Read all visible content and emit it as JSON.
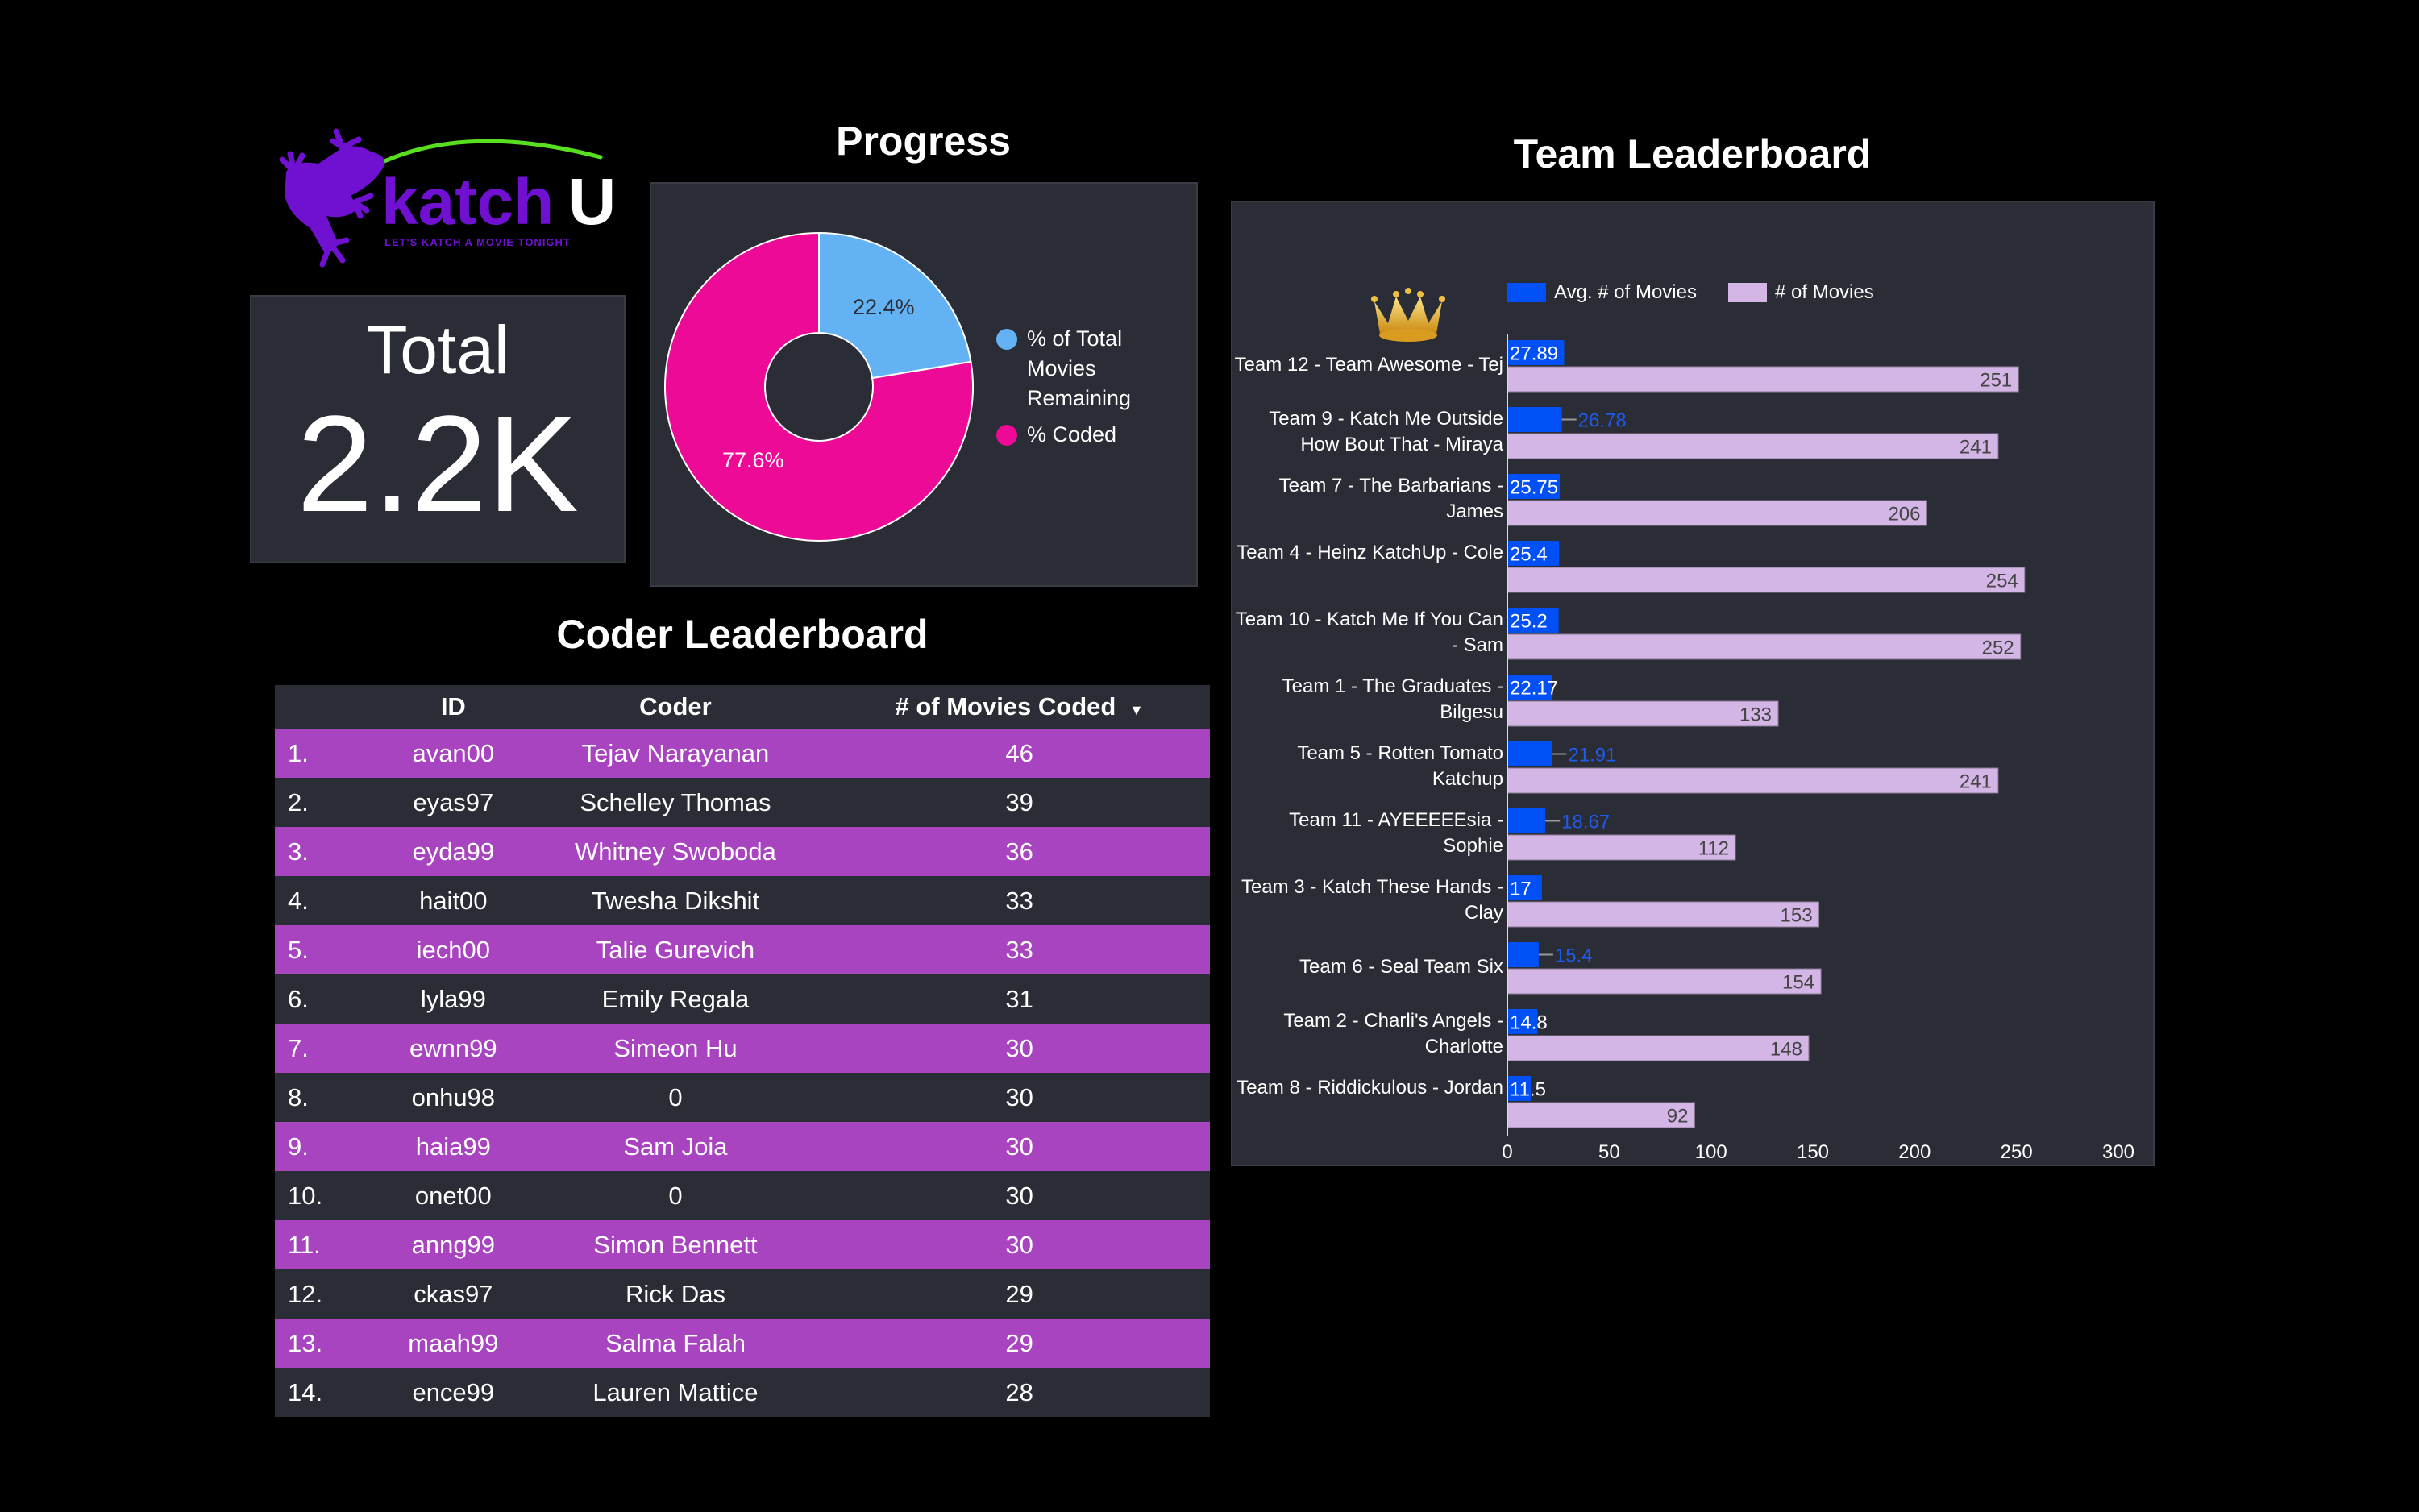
{
  "logo": {
    "brand_part1": "katch",
    "brand_part2": "U",
    "tagline": "LET'S KATCH A MOVIE TONIGHT"
  },
  "total": {
    "label": "Total",
    "value": "2.2K"
  },
  "progress": {
    "title": "Progress",
    "chart_data": {
      "type": "pie",
      "donut": true,
      "slices": [
        {
          "name": "% of Total Movies Remaining",
          "value": 22.4,
          "label": "22.4%",
          "color": "#63b3f4"
        },
        {
          "name": "% Coded",
          "value": 77.6,
          "label": "77.6%",
          "color": "#ec0a96"
        }
      ],
      "legend": "right"
    }
  },
  "coder_leaderboard": {
    "title": "Coder Leaderboard",
    "columns": [
      "",
      "ID",
      "Coder",
      "# of Movies Coded"
    ],
    "sort_indicator": "▼",
    "row_color": "#a844bf",
    "rows": [
      [
        "1.",
        "avan00",
        "Tejav Narayanan",
        "46"
      ],
      [
        "2.",
        "eyas97",
        "Schelley Thomas",
        "39"
      ],
      [
        "3.",
        "eyda99",
        "Whitney Swoboda",
        "36"
      ],
      [
        "4.",
        "hait00",
        "Twesha Dikshit",
        "33"
      ],
      [
        "5.",
        "iech00",
        "Talie Gurevich",
        "33"
      ],
      [
        "6.",
        "lyla99",
        "Emily Regala",
        "31"
      ],
      [
        "7.",
        "ewnn99",
        "Simeon Hu",
        "30"
      ],
      [
        "8.",
        "onhu98",
        "0",
        "30"
      ],
      [
        "9.",
        "haia99",
        "Sam Joia",
        "30"
      ],
      [
        "10.",
        "onet00",
        "0",
        "30"
      ],
      [
        "11.",
        "anng99",
        "Simon Bennett",
        "30"
      ],
      [
        "12.",
        "ckas97",
        "Rick Das",
        "29"
      ],
      [
        "13.",
        "maah99",
        "Salma Falah",
        "29"
      ],
      [
        "14.",
        "ence99",
        "Lauren Mattice",
        "28"
      ]
    ]
  },
  "team_leaderboard": {
    "title": "Team Leaderboard",
    "crown_icon": "crown-icon",
    "chart_data": {
      "type": "bar",
      "orientation": "horizontal",
      "categories": [
        "Team 12 - Team Awesome - Tej",
        "Team 9 - Katch Me Outside How Bout That - Miraya",
        "Team 7 - The Barbarians - James",
        "Team 4 - Heinz KatchUp - Cole",
        "Team 10 - Katch Me If You Can - Sam",
        "Team 1 - The Graduates - Bilgesu",
        "Team 5 - Rotten Tomato Katchup",
        "Team 11 - AYEEEEEsia - Sophie",
        "Team 3 - Katch These Hands - Clay",
        "Team 6 - Seal Team Six",
        "Team 2 - Charli's Angels - Charlotte",
        "Team 8 - Riddickulous - Jordan"
      ],
      "series": [
        {
          "name": "Avg. # of Movies",
          "color": "#0050f5",
          "values": [
            27.89,
            26.78,
            25.75,
            25.4,
            25.2,
            22.17,
            21.91,
            18.67,
            17,
            15.4,
            14.8,
            11.5
          ]
        },
        {
          "name": "# of Movies",
          "color": "#d4b6e6",
          "values": [
            251,
            241,
            206,
            254,
            252,
            133,
            241,
            112,
            153,
            154,
            148,
            92
          ]
        }
      ],
      "xlim": [
        0,
        300
      ],
      "xticks": [
        "0",
        "50",
        "100",
        "150",
        "200",
        "250",
        "300"
      ],
      "legend": "top",
      "grid": false
    }
  }
}
